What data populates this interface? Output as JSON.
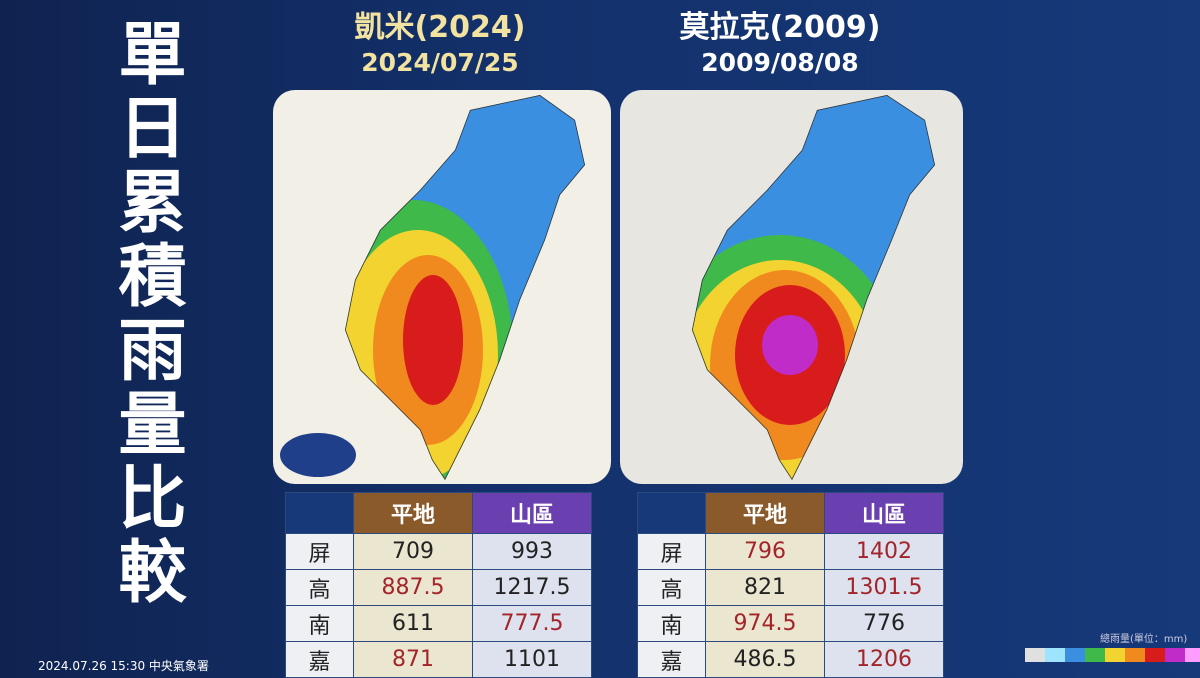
{
  "title": "單日累積雨量比較",
  "panels": [
    {
      "name": "凱米(2024)",
      "date": "2024/07/25",
      "table": {
        "headers": [
          "平地",
          "山區"
        ],
        "rows": [
          {
            "label": "屏",
            "values": [
              709,
              993
            ],
            "colors": [
              "#222222",
              "#222222"
            ]
          },
          {
            "label": "高",
            "values": [
              887.5,
              1217.5
            ],
            "colors": [
              "#a3242a",
              "#222222"
            ]
          },
          {
            "label": "南",
            "values": [
              611,
              777.5
            ],
            "colors": [
              "#222222",
              "#a3242a"
            ]
          },
          {
            "label": "嘉",
            "values": [
              871,
              1101
            ],
            "colors": [
              "#a3242a",
              "#222222"
            ]
          }
        ]
      }
    },
    {
      "name": "莫拉克(2009)",
      "date": "2009/08/08",
      "table": {
        "headers": [
          "平地",
          "山區"
        ],
        "rows": [
          {
            "label": "屏",
            "values": [
              796,
              1402
            ],
            "colors": [
              "#a3242a",
              "#a3242a"
            ]
          },
          {
            "label": "高",
            "values": [
              821,
              1301.5
            ],
            "colors": [
              "#222222",
              "#a3242a"
            ]
          },
          {
            "label": "南",
            "values": [
              974.5,
              776
            ],
            "colors": [
              "#a3242a",
              "#222222"
            ]
          },
          {
            "label": "嘉",
            "values": [
              486.5,
              1206
            ],
            "colors": [
              "#222222",
              "#a3242a"
            ]
          }
        ]
      }
    }
  ],
  "footer": "2024.07.26 15:30 中央氣象署",
  "legend": "總雨量(單位：mm)"
}
